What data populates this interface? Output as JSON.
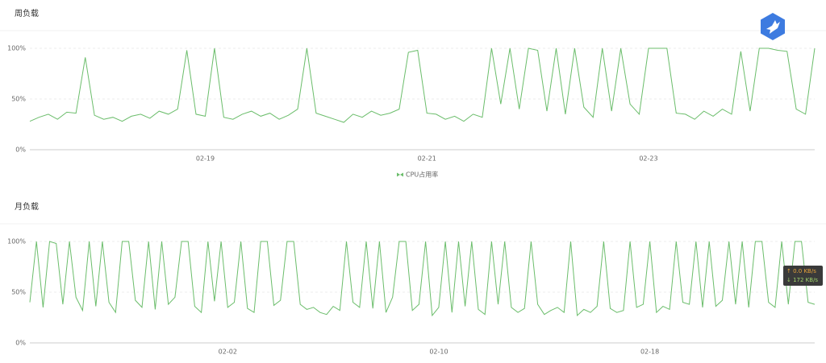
{
  "chart_data": [
    {
      "type": "line",
      "title": "周负载",
      "categories": [
        null,
        null,
        null,
        null,
        null,
        null,
        null,
        null,
        null,
        null,
        null,
        null,
        null,
        null,
        null,
        null,
        null,
        null,
        null,
        "02-19",
        null,
        null,
        null,
        null,
        null,
        null,
        null,
        null,
        null,
        null,
        null,
        null,
        null,
        null,
        null,
        null,
        null,
        null,
        null,
        null,
        null,
        null,
        null,
        "02-21",
        null,
        null,
        null,
        null,
        null,
        null,
        null,
        null,
        null,
        null,
        null,
        null,
        null,
        null,
        null,
        null,
        null,
        null,
        null,
        null,
        null,
        null,
        null,
        "02-23",
        null,
        null,
        null,
        null,
        null,
        null,
        null,
        null,
        null,
        null,
        null,
        null,
        null,
        null,
        null,
        null,
        null,
        null
      ],
      "series": [
        {
          "name": "CPU占用率",
          "color": "#6bbd6b",
          "values": [
            28,
            32,
            35,
            30,
            37,
            36,
            91,
            34,
            30,
            32,
            28,
            33,
            35,
            31,
            38,
            35,
            40,
            98,
            35,
            33,
            100,
            32,
            30,
            35,
            38,
            33,
            36,
            30,
            34,
            40,
            100,
            36,
            33,
            30,
            27,
            35,
            32,
            38,
            34,
            36,
            40,
            96,
            98,
            36,
            35,
            30,
            33,
            28,
            35,
            32,
            100,
            45,
            100,
            40,
            100,
            98,
            38,
            100,
            35,
            100,
            42,
            32,
            100,
            38,
            100,
            45,
            35,
            100,
            100,
            100,
            36,
            35,
            30,
            38,
            33,
            40,
            35,
            97,
            38,
            100,
            100,
            98,
            97,
            40,
            35,
            100
          ]
        }
      ],
      "ylim": [
        0,
        100
      ],
      "yticks": [
        {
          "value": 0,
          "label": "0%"
        },
        {
          "value": 50,
          "label": "50%"
        },
        {
          "value": 100,
          "label": "100%"
        }
      ],
      "grid": true,
      "legend": "bottom"
    },
    {
      "type": "line",
      "title": "月负载",
      "categories": [
        null,
        null,
        null,
        null,
        null,
        null,
        null,
        null,
        null,
        null,
        null,
        null,
        null,
        null,
        null,
        null,
        null,
        null,
        null,
        null,
        null,
        null,
        null,
        null,
        null,
        null,
        null,
        null,
        null,
        null,
        "02-02",
        null,
        null,
        null,
        null,
        null,
        null,
        null,
        null,
        null,
        null,
        null,
        null,
        null,
        null,
        null,
        null,
        null,
        null,
        null,
        null,
        null,
        null,
        null,
        null,
        null,
        null,
        null,
        null,
        null,
        null,
        null,
        "02-10",
        null,
        null,
        null,
        null,
        null,
        null,
        null,
        null,
        null,
        null,
        null,
        null,
        null,
        null,
        null,
        null,
        null,
        null,
        null,
        null,
        null,
        null,
        null,
        null,
        null,
        null,
        null,
        null,
        null,
        null,
        null,
        "02-18",
        null,
        null,
        null,
        null,
        null,
        null,
        null,
        null,
        null,
        null,
        null,
        null,
        null,
        null,
        null,
        null,
        null,
        null,
        null,
        null,
        null,
        null,
        null,
        null,
        null
      ],
      "series": [
        {
          "color": "#6bbd6b",
          "values": [
            40,
            100,
            35,
            100,
            98,
            38,
            100,
            45,
            32,
            100,
            36,
            100,
            40,
            30,
            100,
            100,
            42,
            35,
            100,
            33,
            100,
            38,
            45,
            100,
            100,
            36,
            30,
            100,
            41,
            100,
            35,
            40,
            100,
            34,
            30,
            100,
            100,
            37,
            42,
            100,
            100,
            38,
            33,
            35,
            30,
            28,
            36,
            32,
            100,
            40,
            35,
            100,
            34,
            100,
            30,
            45,
            100,
            100,
            32,
            38,
            100,
            27,
            35,
            100,
            30,
            100,
            36,
            100,
            33,
            28,
            100,
            38,
            100,
            35,
            30,
            34,
            100,
            38,
            28,
            32,
            35,
            30,
            100,
            27,
            33,
            30,
            36,
            100,
            34,
            30,
            32,
            100,
            35,
            38,
            100,
            30,
            36,
            33,
            100,
            40,
            38,
            100,
            35,
            100,
            36,
            42,
            100,
            38,
            100,
            35,
            100,
            100,
            40,
            35,
            100,
            38,
            100,
            100,
            40,
            38
          ]
        }
      ],
      "ylim": [
        0,
        100
      ],
      "yticks": [
        {
          "value": 0,
          "label": "0%"
        },
        {
          "value": 50,
          "label": "50%"
        },
        {
          "value": 100,
          "label": "100%"
        }
      ],
      "grid": true
    }
  ],
  "network_overlay": {
    "upload": "↑ 0.0 KB/s",
    "download": "↓ 172 KB/s"
  }
}
